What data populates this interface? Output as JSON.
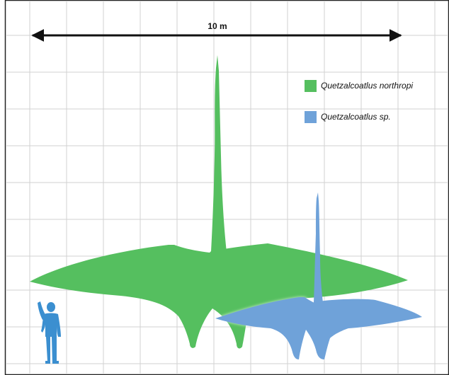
{
  "scale_bar": {
    "label": "10 m"
  },
  "legend": [
    {
      "label": "Quetzalcoatlus northropi",
      "color": "#55bf5f"
    },
    {
      "label": "Quetzalcoatlus sp.",
      "color": "#6fa2d9"
    }
  ],
  "colors": {
    "grid": "#d2d2d2",
    "frame": "#222222",
    "northropi": "#55bf5f",
    "sp": "#6fa2d9",
    "human": "#3b8fd0"
  },
  "figures": [
    {
      "name": "Quetzalcoatlus northropi",
      "kind": "pterosaur-silhouette"
    },
    {
      "name": "Quetzalcoatlus sp.",
      "kind": "pterosaur-silhouette"
    },
    {
      "name": "human",
      "kind": "human-silhouette"
    }
  ]
}
